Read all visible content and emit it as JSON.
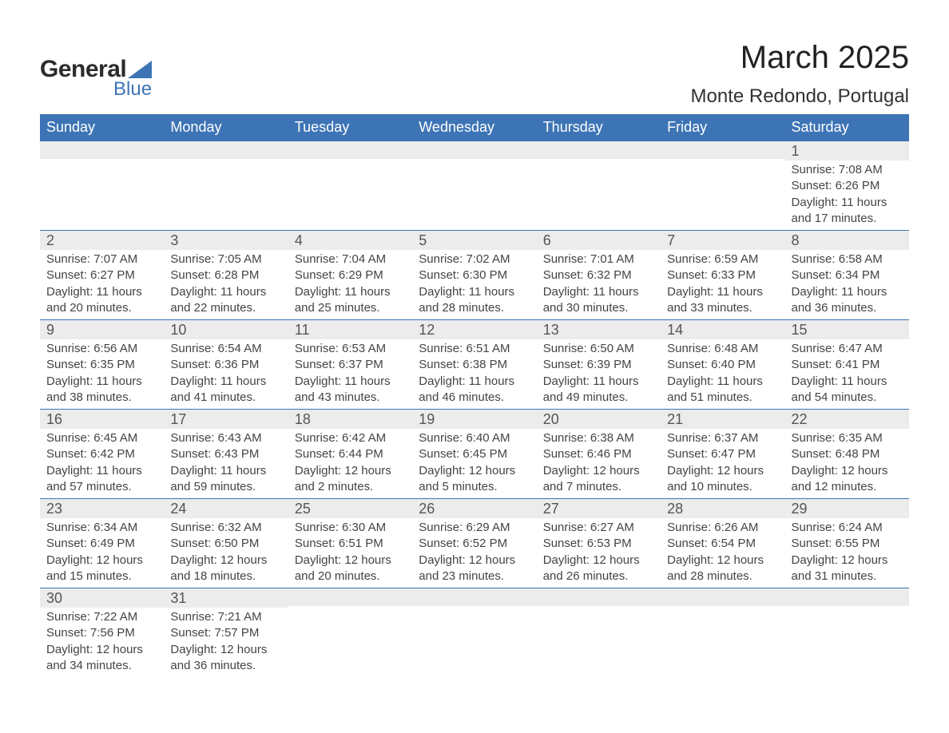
{
  "logo": {
    "text_general": "General",
    "text_blue": "Blue",
    "accent_color": "#3d74b5"
  },
  "title": "March 2025",
  "location": "Monte Redondo, Portugal",
  "colors": {
    "header_bg": "#3d74b5",
    "header_text": "#ffffff",
    "daynum_bg": "#ececec",
    "daynum_text": "#555555",
    "body_text": "#444444",
    "row_border": "#3d74b5",
    "page_bg": "#ffffff"
  },
  "typography": {
    "title_fontsize_pt": 30,
    "location_fontsize_pt": 18,
    "header_fontsize_pt": 14,
    "daynum_fontsize_pt": 14,
    "body_fontsize_pt": 11
  },
  "weekdays": [
    "Sunday",
    "Monday",
    "Tuesday",
    "Wednesday",
    "Thursday",
    "Friday",
    "Saturday"
  ],
  "weeks": [
    [
      {
        "day": "",
        "sunrise": "",
        "sunset": "",
        "daylight_l1": "",
        "daylight_l2": ""
      },
      {
        "day": "",
        "sunrise": "",
        "sunset": "",
        "daylight_l1": "",
        "daylight_l2": ""
      },
      {
        "day": "",
        "sunrise": "",
        "sunset": "",
        "daylight_l1": "",
        "daylight_l2": ""
      },
      {
        "day": "",
        "sunrise": "",
        "sunset": "",
        "daylight_l1": "",
        "daylight_l2": ""
      },
      {
        "day": "",
        "sunrise": "",
        "sunset": "",
        "daylight_l1": "",
        "daylight_l2": ""
      },
      {
        "day": "",
        "sunrise": "",
        "sunset": "",
        "daylight_l1": "",
        "daylight_l2": ""
      },
      {
        "day": "1",
        "sunrise": "Sunrise: 7:08 AM",
        "sunset": "Sunset: 6:26 PM",
        "daylight_l1": "Daylight: 11 hours",
        "daylight_l2": "and 17 minutes."
      }
    ],
    [
      {
        "day": "2",
        "sunrise": "Sunrise: 7:07 AM",
        "sunset": "Sunset: 6:27 PM",
        "daylight_l1": "Daylight: 11 hours",
        "daylight_l2": "and 20 minutes."
      },
      {
        "day": "3",
        "sunrise": "Sunrise: 7:05 AM",
        "sunset": "Sunset: 6:28 PM",
        "daylight_l1": "Daylight: 11 hours",
        "daylight_l2": "and 22 minutes."
      },
      {
        "day": "4",
        "sunrise": "Sunrise: 7:04 AM",
        "sunset": "Sunset: 6:29 PM",
        "daylight_l1": "Daylight: 11 hours",
        "daylight_l2": "and 25 minutes."
      },
      {
        "day": "5",
        "sunrise": "Sunrise: 7:02 AM",
        "sunset": "Sunset: 6:30 PM",
        "daylight_l1": "Daylight: 11 hours",
        "daylight_l2": "and 28 minutes."
      },
      {
        "day": "6",
        "sunrise": "Sunrise: 7:01 AM",
        "sunset": "Sunset: 6:32 PM",
        "daylight_l1": "Daylight: 11 hours",
        "daylight_l2": "and 30 minutes."
      },
      {
        "day": "7",
        "sunrise": "Sunrise: 6:59 AM",
        "sunset": "Sunset: 6:33 PM",
        "daylight_l1": "Daylight: 11 hours",
        "daylight_l2": "and 33 minutes."
      },
      {
        "day": "8",
        "sunrise": "Sunrise: 6:58 AM",
        "sunset": "Sunset: 6:34 PM",
        "daylight_l1": "Daylight: 11 hours",
        "daylight_l2": "and 36 minutes."
      }
    ],
    [
      {
        "day": "9",
        "sunrise": "Sunrise: 6:56 AM",
        "sunset": "Sunset: 6:35 PM",
        "daylight_l1": "Daylight: 11 hours",
        "daylight_l2": "and 38 minutes."
      },
      {
        "day": "10",
        "sunrise": "Sunrise: 6:54 AM",
        "sunset": "Sunset: 6:36 PM",
        "daylight_l1": "Daylight: 11 hours",
        "daylight_l2": "and 41 minutes."
      },
      {
        "day": "11",
        "sunrise": "Sunrise: 6:53 AM",
        "sunset": "Sunset: 6:37 PM",
        "daylight_l1": "Daylight: 11 hours",
        "daylight_l2": "and 43 minutes."
      },
      {
        "day": "12",
        "sunrise": "Sunrise: 6:51 AM",
        "sunset": "Sunset: 6:38 PM",
        "daylight_l1": "Daylight: 11 hours",
        "daylight_l2": "and 46 minutes."
      },
      {
        "day": "13",
        "sunrise": "Sunrise: 6:50 AM",
        "sunset": "Sunset: 6:39 PM",
        "daylight_l1": "Daylight: 11 hours",
        "daylight_l2": "and 49 minutes."
      },
      {
        "day": "14",
        "sunrise": "Sunrise: 6:48 AM",
        "sunset": "Sunset: 6:40 PM",
        "daylight_l1": "Daylight: 11 hours",
        "daylight_l2": "and 51 minutes."
      },
      {
        "day": "15",
        "sunrise": "Sunrise: 6:47 AM",
        "sunset": "Sunset: 6:41 PM",
        "daylight_l1": "Daylight: 11 hours",
        "daylight_l2": "and 54 minutes."
      }
    ],
    [
      {
        "day": "16",
        "sunrise": "Sunrise: 6:45 AM",
        "sunset": "Sunset: 6:42 PM",
        "daylight_l1": "Daylight: 11 hours",
        "daylight_l2": "and 57 minutes."
      },
      {
        "day": "17",
        "sunrise": "Sunrise: 6:43 AM",
        "sunset": "Sunset: 6:43 PM",
        "daylight_l1": "Daylight: 11 hours",
        "daylight_l2": "and 59 minutes."
      },
      {
        "day": "18",
        "sunrise": "Sunrise: 6:42 AM",
        "sunset": "Sunset: 6:44 PM",
        "daylight_l1": "Daylight: 12 hours",
        "daylight_l2": "and 2 minutes."
      },
      {
        "day": "19",
        "sunrise": "Sunrise: 6:40 AM",
        "sunset": "Sunset: 6:45 PM",
        "daylight_l1": "Daylight: 12 hours",
        "daylight_l2": "and 5 minutes."
      },
      {
        "day": "20",
        "sunrise": "Sunrise: 6:38 AM",
        "sunset": "Sunset: 6:46 PM",
        "daylight_l1": "Daylight: 12 hours",
        "daylight_l2": "and 7 minutes."
      },
      {
        "day": "21",
        "sunrise": "Sunrise: 6:37 AM",
        "sunset": "Sunset: 6:47 PM",
        "daylight_l1": "Daylight: 12 hours",
        "daylight_l2": "and 10 minutes."
      },
      {
        "day": "22",
        "sunrise": "Sunrise: 6:35 AM",
        "sunset": "Sunset: 6:48 PM",
        "daylight_l1": "Daylight: 12 hours",
        "daylight_l2": "and 12 minutes."
      }
    ],
    [
      {
        "day": "23",
        "sunrise": "Sunrise: 6:34 AM",
        "sunset": "Sunset: 6:49 PM",
        "daylight_l1": "Daylight: 12 hours",
        "daylight_l2": "and 15 minutes."
      },
      {
        "day": "24",
        "sunrise": "Sunrise: 6:32 AM",
        "sunset": "Sunset: 6:50 PM",
        "daylight_l1": "Daylight: 12 hours",
        "daylight_l2": "and 18 minutes."
      },
      {
        "day": "25",
        "sunrise": "Sunrise: 6:30 AM",
        "sunset": "Sunset: 6:51 PM",
        "daylight_l1": "Daylight: 12 hours",
        "daylight_l2": "and 20 minutes."
      },
      {
        "day": "26",
        "sunrise": "Sunrise: 6:29 AM",
        "sunset": "Sunset: 6:52 PM",
        "daylight_l1": "Daylight: 12 hours",
        "daylight_l2": "and 23 minutes."
      },
      {
        "day": "27",
        "sunrise": "Sunrise: 6:27 AM",
        "sunset": "Sunset: 6:53 PM",
        "daylight_l1": "Daylight: 12 hours",
        "daylight_l2": "and 26 minutes."
      },
      {
        "day": "28",
        "sunrise": "Sunrise: 6:26 AM",
        "sunset": "Sunset: 6:54 PM",
        "daylight_l1": "Daylight: 12 hours",
        "daylight_l2": "and 28 minutes."
      },
      {
        "day": "29",
        "sunrise": "Sunrise: 6:24 AM",
        "sunset": "Sunset: 6:55 PM",
        "daylight_l1": "Daylight: 12 hours",
        "daylight_l2": "and 31 minutes."
      }
    ],
    [
      {
        "day": "30",
        "sunrise": "Sunrise: 7:22 AM",
        "sunset": "Sunset: 7:56 PM",
        "daylight_l1": "Daylight: 12 hours",
        "daylight_l2": "and 34 minutes."
      },
      {
        "day": "31",
        "sunrise": "Sunrise: 7:21 AM",
        "sunset": "Sunset: 7:57 PM",
        "daylight_l1": "Daylight: 12 hours",
        "daylight_l2": "and 36 minutes."
      },
      {
        "day": "",
        "sunrise": "",
        "sunset": "",
        "daylight_l1": "",
        "daylight_l2": ""
      },
      {
        "day": "",
        "sunrise": "",
        "sunset": "",
        "daylight_l1": "",
        "daylight_l2": ""
      },
      {
        "day": "",
        "sunrise": "",
        "sunset": "",
        "daylight_l1": "",
        "daylight_l2": ""
      },
      {
        "day": "",
        "sunrise": "",
        "sunset": "",
        "daylight_l1": "",
        "daylight_l2": ""
      },
      {
        "day": "",
        "sunrise": "",
        "sunset": "",
        "daylight_l1": "",
        "daylight_l2": ""
      }
    ]
  ]
}
